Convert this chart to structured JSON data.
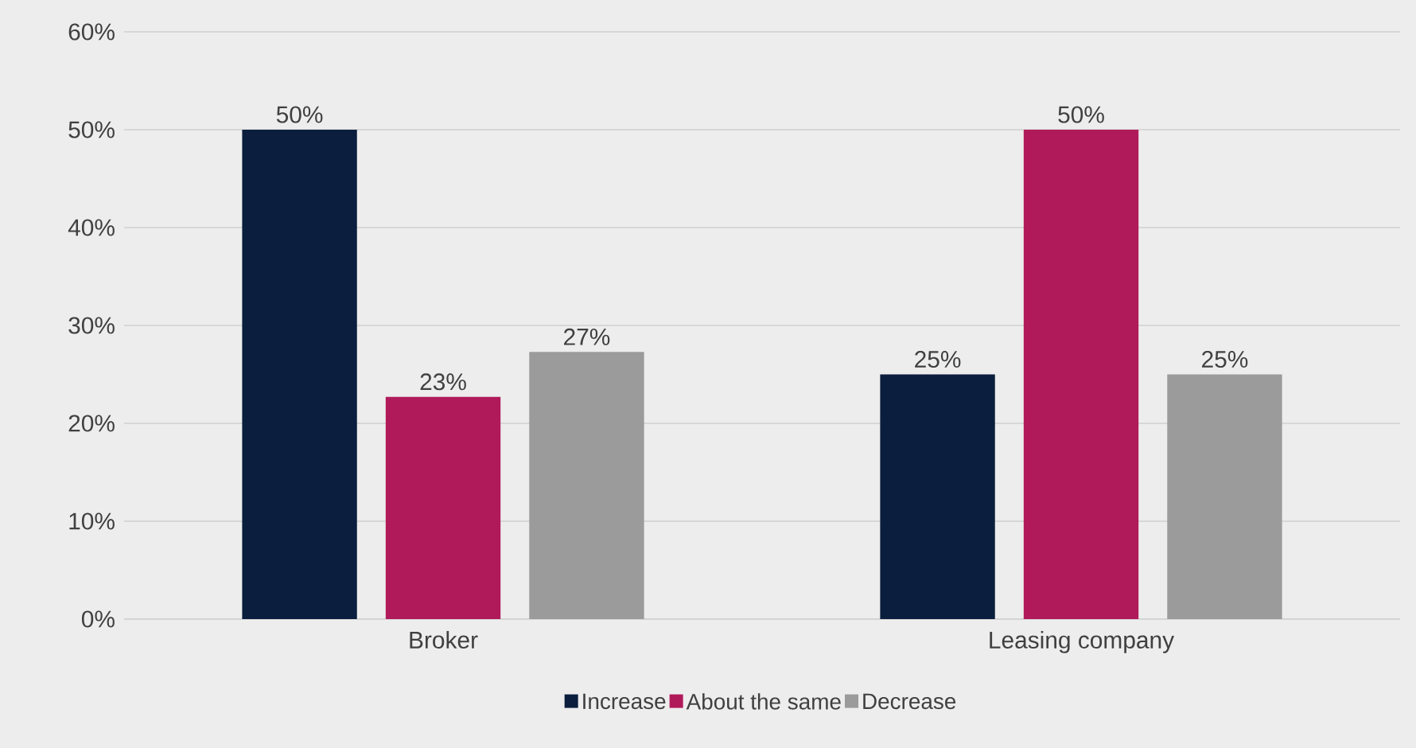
{
  "chart_data": {
    "type": "bar",
    "categories": [
      "Broker",
      "Leasing company"
    ],
    "series": [
      {
        "name": "Increase",
        "color": "#0b1e3d",
        "values": [
          50,
          25
        ],
        "value_labels": [
          "50%",
          "25%"
        ]
      },
      {
        "name": "About the same",
        "color": "#b01a5a",
        "values": [
          22.7,
          50
        ],
        "value_labels": [
          "23%",
          "50%"
        ]
      },
      {
        "name": "Decrease",
        "color": "#9b9b9b",
        "values": [
          27.3,
          25
        ],
        "value_labels": [
          "27%",
          "25%"
        ]
      }
    ],
    "ylim": [
      0,
      60
    ],
    "yticks": [
      {
        "value": 0,
        "label": "0%"
      },
      {
        "value": 10,
        "label": "10%"
      },
      {
        "value": 20,
        "label": "20%"
      },
      {
        "value": 30,
        "label": "30%"
      },
      {
        "value": 40,
        "label": "40%"
      },
      {
        "value": 50,
        "label": "50%"
      },
      {
        "value": 60,
        "label": "60%"
      }
    ],
    "grid": "y",
    "legend": "bottom"
  }
}
